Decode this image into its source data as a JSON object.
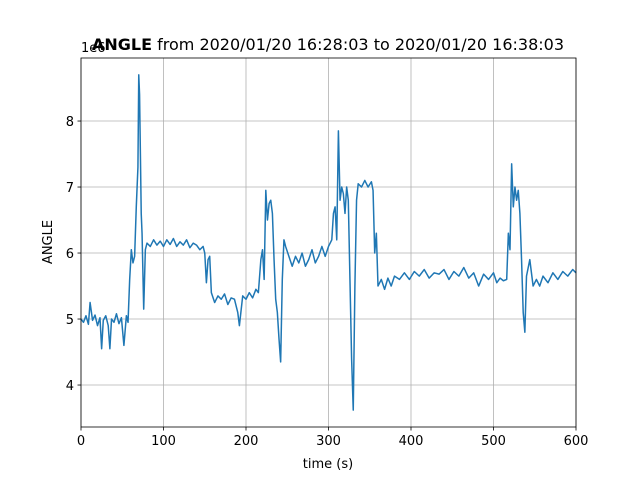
{
  "chart_data": {
    "type": "line",
    "title_bold": "ANGLE",
    "title_rest": " from 2020/01/20 16:28:03 to 2020/01/20 16:38:03",
    "offset_text": "1e6",
    "x_label": "time (s)",
    "y_label": "ANGLE",
    "color": "#1f77b4",
    "grid": true,
    "xlim": [
      0,
      600
    ],
    "xticks": [
      0,
      100,
      200,
      300,
      400,
      500,
      600
    ],
    "ylim": [
      3.364,
      8.955
    ],
    "yticks": [
      4,
      5,
      6,
      7,
      8
    ],
    "x": [
      0,
      3,
      6,
      9,
      11,
      14,
      17,
      20,
      23,
      25,
      27,
      30,
      33,
      35,
      37,
      40,
      43,
      46,
      49,
      52,
      55,
      57,
      59,
      61,
      63,
      65,
      67,
      69,
      70,
      71,
      72,
      73,
      74,
      76,
      78,
      80,
      84,
      88,
      92,
      96,
      100,
      104,
      108,
      112,
      116,
      120,
      124,
      128,
      132,
      136,
      140,
      144,
      148,
      150,
      152,
      154,
      156,
      158,
      162,
      166,
      170,
      174,
      178,
      182,
      186,
      190,
      192,
      196,
      200,
      204,
      208,
      212,
      215,
      218,
      220,
      222,
      224,
      226,
      228,
      230,
      232,
      234,
      236,
      238,
      240,
      242,
      244,
      246,
      248,
      252,
      256,
      260,
      264,
      268,
      272,
      276,
      280,
      284,
      288,
      292,
      296,
      300,
      304,
      306,
      308,
      310,
      312,
      314,
      316,
      318,
      320,
      322,
      324,
      326,
      328,
      330,
      332,
      334,
      336,
      340,
      344,
      348,
      352,
      354,
      356,
      358,
      360,
      364,
      368,
      372,
      376,
      380,
      386,
      392,
      398,
      404,
      410,
      416,
      422,
      428,
      434,
      440,
      446,
      452,
      458,
      464,
      470,
      476,
      482,
      488,
      494,
      500,
      504,
      508,
      512,
      516,
      518,
      520,
      522,
      524,
      526,
      528,
      530,
      532,
      534,
      536,
      538,
      540,
      544,
      548,
      552,
      556,
      560,
      566,
      572,
      578,
      584,
      590,
      596,
      600
    ],
    "values": [
      5.0,
      4.95,
      5.05,
      4.92,
      5.25,
      4.98,
      5.06,
      4.9,
      5.02,
      4.55,
      4.98,
      5.05,
      4.9,
      4.55,
      5.0,
      4.95,
      5.08,
      4.93,
      5.02,
      4.6,
      5.05,
      4.95,
      5.6,
      6.05,
      5.85,
      5.95,
      6.7,
      7.3,
      8.7,
      8.4,
      7.5,
      6.6,
      6.3,
      5.15,
      6.05,
      6.15,
      6.1,
      6.2,
      6.12,
      6.18,
      6.1,
      6.2,
      6.13,
      6.22,
      6.1,
      6.17,
      6.12,
      6.2,
      6.08,
      6.15,
      6.12,
      6.05,
      6.1,
      6.0,
      5.55,
      5.9,
      5.95,
      5.4,
      5.25,
      5.35,
      5.3,
      5.38,
      5.22,
      5.32,
      5.3,
      5.1,
      4.9,
      5.35,
      5.3,
      5.4,
      5.32,
      5.45,
      5.4,
      5.9,
      6.05,
      5.6,
      6.95,
      6.5,
      6.75,
      6.8,
      6.6,
      5.9,
      5.3,
      5.1,
      4.7,
      4.35,
      5.6,
      6.2,
      6.1,
      5.95,
      5.8,
      5.95,
      5.85,
      6.0,
      5.8,
      5.9,
      6.05,
      5.85,
      5.95,
      6.1,
      5.95,
      6.1,
      6.2,
      6.6,
      6.7,
      6.2,
      7.85,
      6.8,
      7.0,
      6.9,
      6.6,
      7.0,
      6.8,
      5.6,
      4.4,
      3.62,
      5.5,
      6.8,
      7.05,
      7.0,
      7.1,
      7.0,
      7.08,
      6.95,
      6.0,
      6.3,
      5.5,
      5.6,
      5.45,
      5.62,
      5.5,
      5.65,
      5.6,
      5.7,
      5.6,
      5.72,
      5.65,
      5.75,
      5.62,
      5.7,
      5.68,
      5.75,
      5.6,
      5.72,
      5.65,
      5.78,
      5.62,
      5.7,
      5.5,
      5.68,
      5.6,
      5.7,
      5.55,
      5.62,
      5.58,
      5.6,
      6.3,
      6.05,
      7.35,
      6.7,
      7.0,
      6.8,
      6.95,
      6.6,
      5.9,
      5.1,
      4.8,
      5.65,
      5.9,
      5.5,
      5.6,
      5.5,
      5.65,
      5.55,
      5.7,
      5.6,
      5.72,
      5.65,
      5.75,
      5.7
    ]
  }
}
